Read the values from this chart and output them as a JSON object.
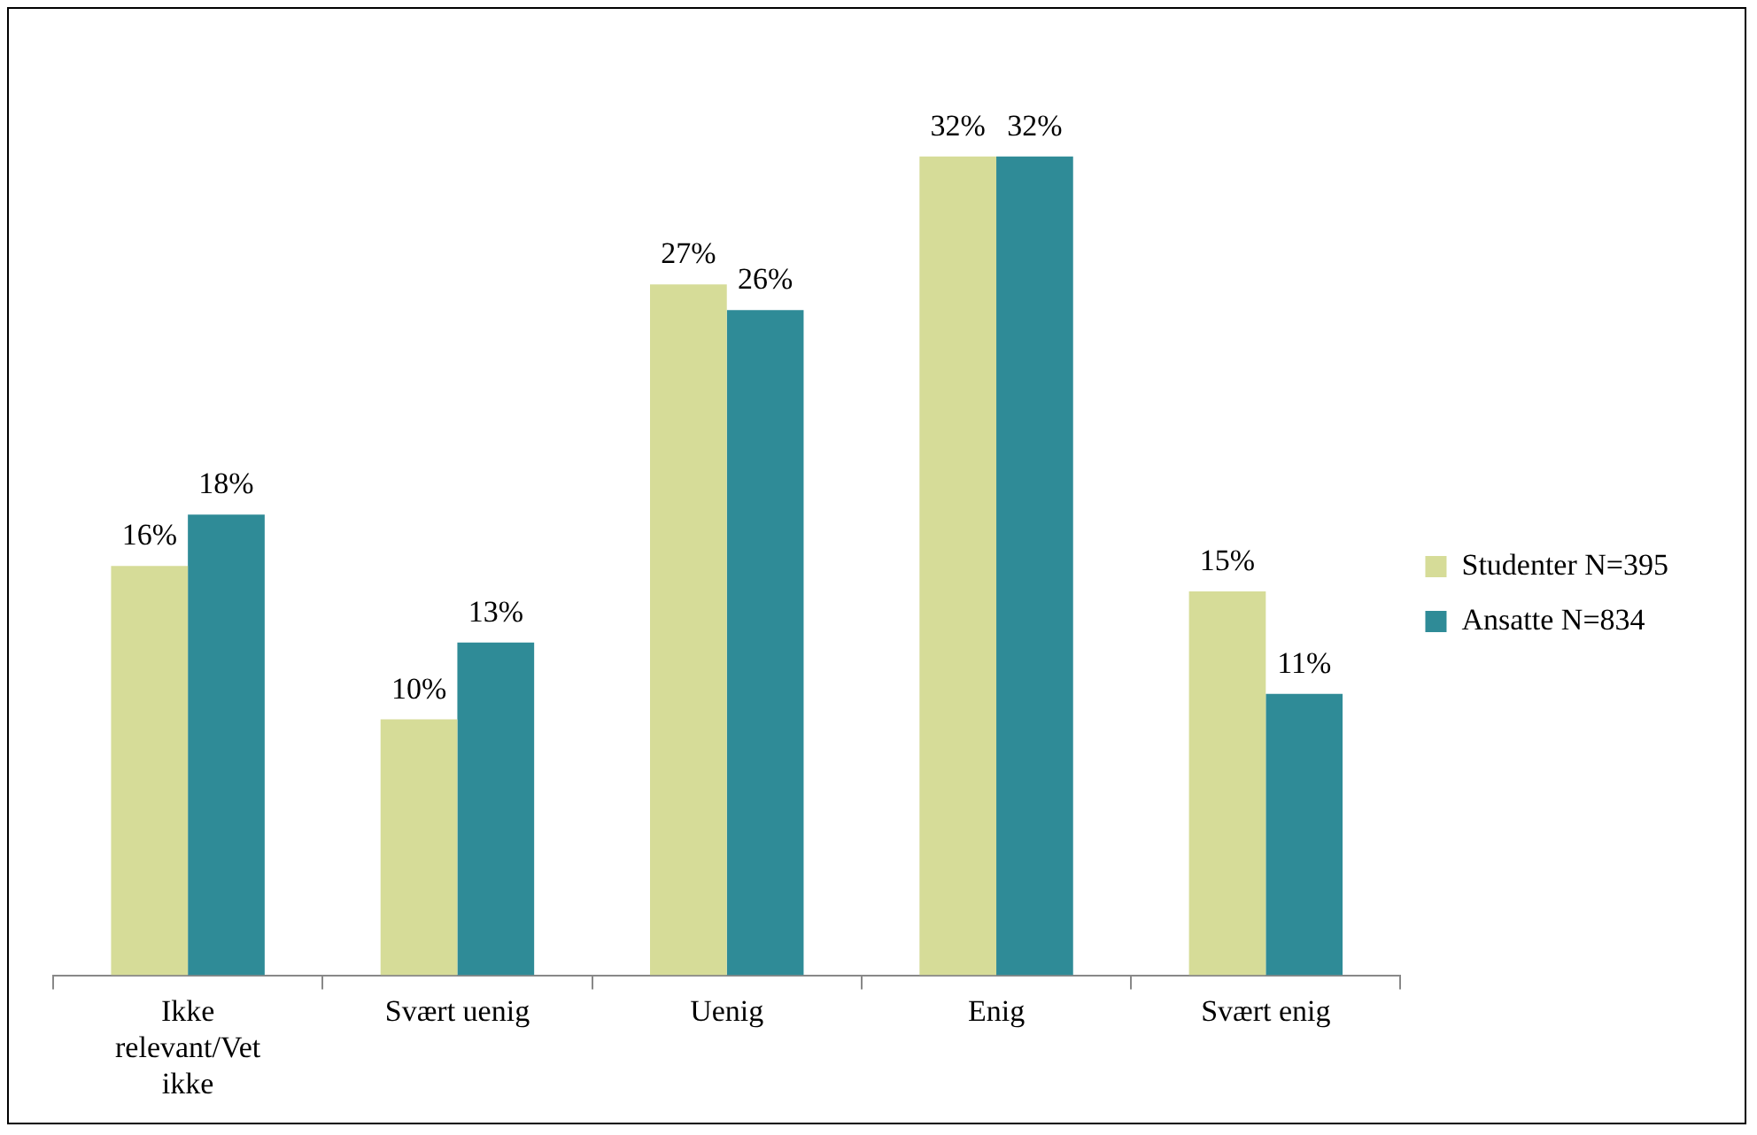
{
  "chart_data": {
    "type": "bar",
    "categories": [
      "Ikke relevant/Vet ikke",
      "Svært uenig",
      "Uenig",
      "Enig",
      "Svært enig"
    ],
    "series": [
      {
        "name": "Studenter N=395",
        "color": "#d6dc98",
        "values": [
          16,
          10,
          27,
          32,
          15
        ],
        "value_labels": [
          "16%",
          "10%",
          "27%",
          "32%",
          "15%"
        ]
      },
      {
        "name": "Ansatte N=834",
        "color": "#2f8b97",
        "values": [
          18,
          13,
          26,
          32,
          11
        ],
        "value_labels": [
          "18%",
          "13%",
          "26%",
          "32%",
          "11%"
        ]
      }
    ],
    "grid": false,
    "legend": "right"
  }
}
